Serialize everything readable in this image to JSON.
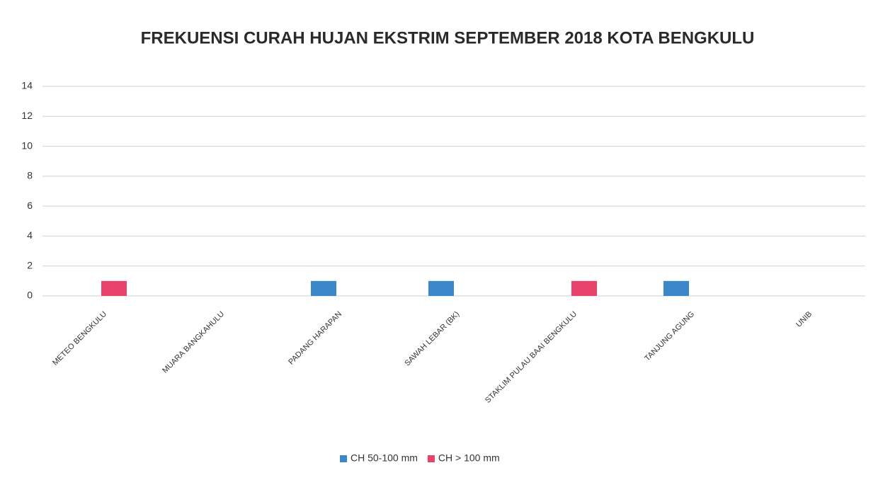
{
  "chart_data": {
    "type": "bar",
    "title": "FREKUENSI CURAH HUJAN EKSTRIM SEPTEMBER 2018 KOTA BENGKULU",
    "categories": [
      "METEO BENGKULU",
      "MUARA BANGKAHULU",
      "PADANG HARAPAN",
      "SAWAH LEBAR (BK)",
      "STAKLIM PULAU BAAI BENGKULU",
      "TANJUNG AGUNG",
      "UNIB"
    ],
    "series": [
      {
        "name": "CH 50-100 mm",
        "color": "#3b87c9",
        "values": [
          0,
          0,
          1,
          1,
          0,
          1,
          0
        ]
      },
      {
        "name": "CH > 100 mm",
        "color": "#e8436b",
        "values": [
          1,
          0,
          0,
          0,
          1,
          0,
          0
        ]
      }
    ],
    "ylim": [
      0,
      14
    ],
    "yticks": [
      0,
      2,
      4,
      6,
      8,
      10,
      12,
      14
    ],
    "grid": true,
    "legend": "bottom"
  }
}
